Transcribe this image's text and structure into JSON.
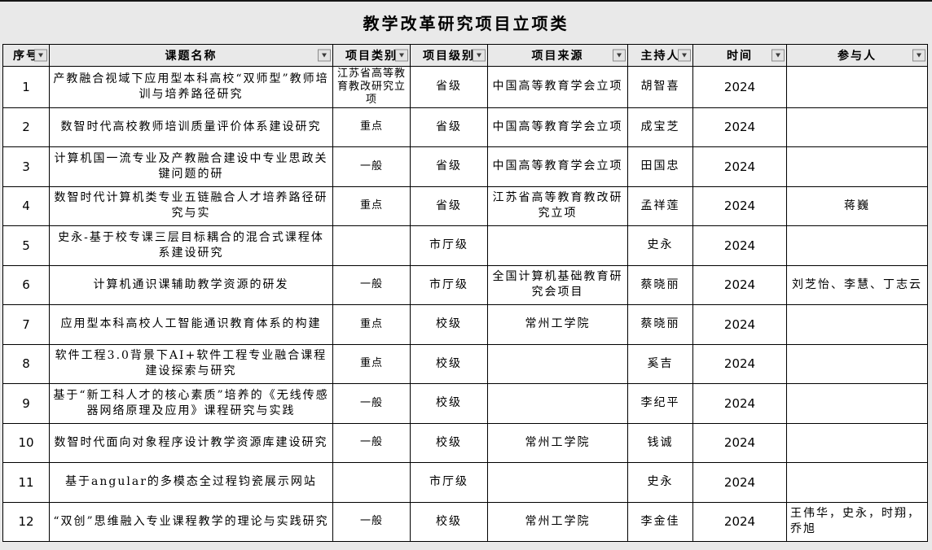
{
  "title": "教学改革研究项目立项类",
  "icons": {
    "header_filter": "chevron-down-icon"
  },
  "colors": {
    "page_bg": "#e9e9e9",
    "cell_bg": "#ffffff",
    "grid_border": "#000000",
    "filter_button_face": "#e3e3e3",
    "filter_button_border": "#8a8a8a",
    "filter_arrow": "#3a3a3a"
  },
  "table": {
    "columns": [
      {
        "key": "no",
        "label": "序号"
      },
      {
        "key": "name",
        "label": "课题名称"
      },
      {
        "key": "category",
        "label": "项目类别"
      },
      {
        "key": "level",
        "label": "项目级别"
      },
      {
        "key": "source",
        "label": "项目来源"
      },
      {
        "key": "leader",
        "label": "主持人"
      },
      {
        "key": "year",
        "label": "时间"
      },
      {
        "key": "participants",
        "label": "参与人"
      }
    ],
    "rows": [
      {
        "no": "1",
        "name": "产教融合视域下应用型本科高校“双师型”教师培训与培养路径研究",
        "category": "江苏省高等教育教改研究立项",
        "level": "省级",
        "source": "中国高等教育学会立项",
        "leader": "胡智喜",
        "year": "2024",
        "participants": ""
      },
      {
        "no": "2",
        "name": "数智时代高校教师培训质量评价体系建设研究",
        "category": "重点",
        "level": "省级",
        "source": "中国高等教育学会立项",
        "leader": "成宝芝",
        "year": "2024",
        "participants": ""
      },
      {
        "no": "3",
        "name": "计算机国一流专业及产教融合建设中专业思政关键问题的研",
        "category": "一般",
        "level": "省级",
        "source": "中国高等教育学会立项",
        "leader": "田国忠",
        "year": "2024",
        "participants": ""
      },
      {
        "no": "4",
        "name": "数智时代计算机类专业五链融合人才培养路径研究与实",
        "category": "重点",
        "level": "省级",
        "source": "江苏省高等教育教改研究立项",
        "leader": "孟祥莲",
        "year": "2024",
        "participants": "蒋巍"
      },
      {
        "no": "5",
        "name": "史永-基于校专课三层目标耦合的混合式课程体系建设研究",
        "category": "",
        "level": "市厅级",
        "source": "",
        "leader": "史永",
        "year": "2024",
        "participants": ""
      },
      {
        "no": "6",
        "name": "计算机通识课辅助教学资源的研发",
        "category": "一般",
        "level": "市厅级",
        "source": "全国计算机基础教育研究会项目",
        "leader": "蔡晓丽",
        "year": "2024",
        "participants": "刘芝怡、李慧、丁志云"
      },
      {
        "no": "7",
        "name": "应用型本科高校人工智能通识教育体系的构建",
        "category": "重点",
        "level": "校级",
        "source": "常州工学院",
        "leader": "蔡晓丽",
        "year": "2024",
        "participants": ""
      },
      {
        "no": "8",
        "name": "软件工程3.0背景下AI+软件工程专业融合课程建设探索与研究",
        "category": "重点",
        "level": "校级",
        "source": "",
        "leader": "奚吉",
        "year": "2024",
        "participants": ""
      },
      {
        "no": "9",
        "name": "基于“新工科人才的核心素质”培养的《无线传感器网络原理及应用》课程研究与实践",
        "category": "一般",
        "level": "校级",
        "source": "",
        "leader": "李纪平",
        "year": "2024",
        "participants": ""
      },
      {
        "no": "10",
        "name": "数智时代面向对象程序设计教学资源库建设研究",
        "category": "一般",
        "level": "校级",
        "source": "常州工学院",
        "leader": "钱诚",
        "year": "2024",
        "participants": ""
      },
      {
        "no": "11",
        "name": "基于angular的多模态全过程钧瓷展示网站",
        "category": "",
        "level": "市厅级",
        "source": "",
        "leader": "史永",
        "year": "2024",
        "participants": ""
      },
      {
        "no": "12",
        "name": "“双创”思维融入专业课程教学的理论与实践研究",
        "category": "一般",
        "level": "校级",
        "source": "常州工学院",
        "leader": "李金佳",
        "year": "2024",
        "participants": "王伟华，史永，时翔，乔旭"
      }
    ]
  }
}
